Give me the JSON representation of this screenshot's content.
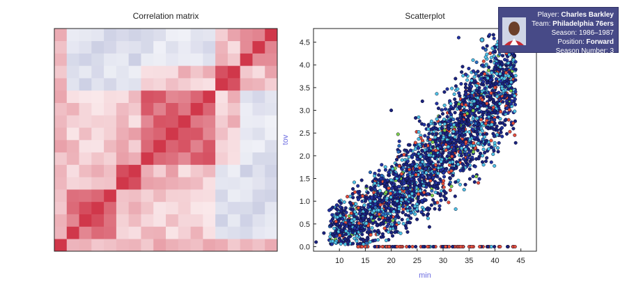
{
  "matrix": {
    "title": "Correlation matrix",
    "n": 18,
    "colors": {
      "positive": "#d0374a",
      "negative": "#6b74b0",
      "neutral": "#ffffff"
    }
  },
  "scatter": {
    "title": "Scatterplot"
  },
  "tooltip": {
    "player_label": "Player:",
    "player": "Charles Barkley",
    "team_label": "Team:",
    "team": "Philadelphia 76ers",
    "season_label": "Season:",
    "season": "1986–1987",
    "position_label": "Position:",
    "position": "Forward",
    "season_number_label": "Season Number:",
    "season_number": "3"
  },
  "chart_data": [
    {
      "type": "heatmap",
      "title": "Correlation matrix",
      "rows": 18,
      "cols": 18,
      "value_range": [
        -1,
        1
      ],
      "grid": false
    },
    {
      "type": "scatter",
      "title": "Scatterplot",
      "xlabel": "min",
      "ylabel": "tov",
      "xlim": [
        5,
        48
      ],
      "ylim": [
        -0.1,
        4.8
      ],
      "xticks": [
        10,
        15,
        20,
        25,
        30,
        35,
        40,
        45
      ],
      "yticks": [
        0.0,
        0.5,
        1.0,
        1.5,
        2.0,
        2.5,
        3.0,
        3.5,
        4.0,
        4.5
      ],
      "point_colors": [
        "#1a237e",
        "#2233a0",
        "#4fc3e6",
        "#e8503c",
        "#7fd04a",
        "#2a6fbf"
      ],
      "sample_points": [
        [
          5.5,
          0.1
        ],
        [
          7,
          0.3
        ],
        [
          9,
          0.4
        ],
        [
          10,
          0.6
        ],
        [
          12,
          0.5
        ],
        [
          13,
          1.2
        ],
        [
          14,
          0.8
        ],
        [
          15,
          1.0
        ],
        [
          16,
          1.3
        ],
        [
          17,
          1.1
        ],
        [
          18,
          1.5
        ],
        [
          19,
          1.2
        ],
        [
          20,
          1.4
        ],
        [
          21,
          1.8
        ],
        [
          22,
          1.6
        ],
        [
          23,
          1.5
        ],
        [
          24,
          2.0
        ],
        [
          25,
          1.7
        ],
        [
          26,
          2.1
        ],
        [
          27,
          1.9
        ],
        [
          28,
          2.3
        ],
        [
          29,
          2.0
        ],
        [
          30,
          2.5
        ],
        [
          31,
          2.2
        ],
        [
          32,
          2.8
        ],
        [
          33,
          2.6
        ],
        [
          34,
          3.0
        ],
        [
          35,
          2.7
        ],
        [
          36,
          3.2
        ],
        [
          37,
          3.4
        ],
        [
          38,
          3.1
        ],
        [
          39,
          3.6
        ],
        [
          40,
          3.5
        ],
        [
          41,
          3.8
        ],
        [
          42,
          3.3
        ],
        [
          43,
          4.0
        ],
        [
          44,
          3.9
        ],
        [
          45,
          4.4
        ],
        [
          33,
          4.6
        ],
        [
          40,
          4.3
        ],
        [
          20,
          3.0
        ],
        [
          26,
          3.2
        ]
      ],
      "zero_row_x_range": [
        13,
        44
      ]
    }
  ]
}
